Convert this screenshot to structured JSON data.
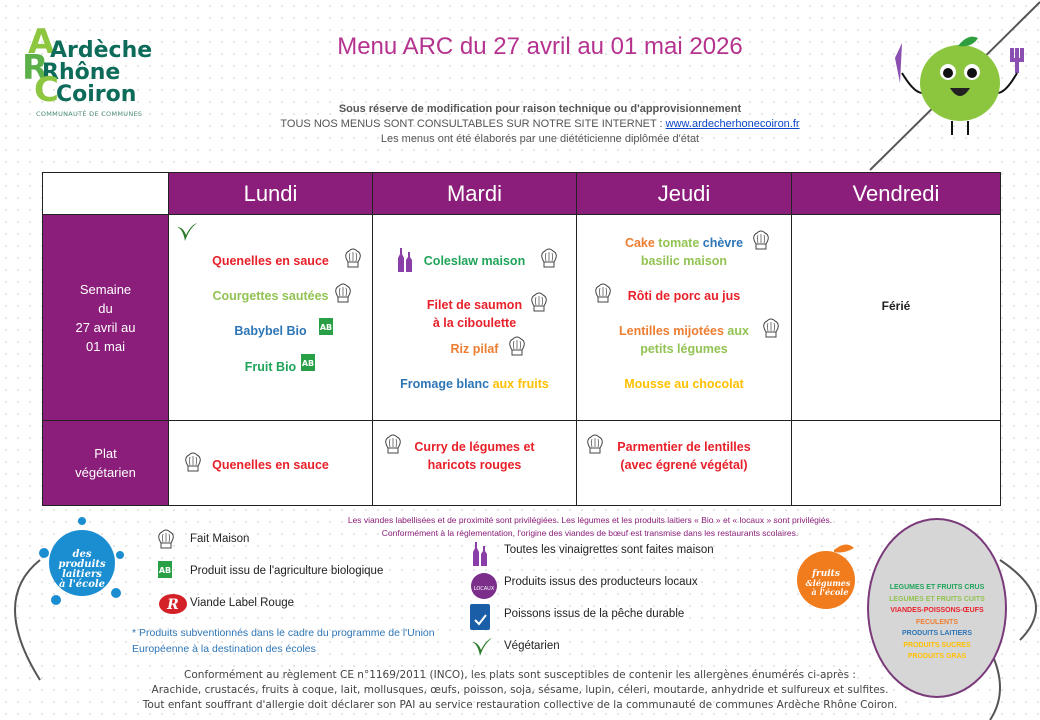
{
  "logo": {
    "line1": "Ardèche",
    "line2": "Rhône",
    "line3": "Coiron",
    "subtitle": "COMMUNAUTÉ DE COMMUNES"
  },
  "title": "Menu ARC du 27 avril au 01 mai 2026",
  "notes": {
    "line1": "Sous réserve de modification pour raison technique ou d'approvisionnement",
    "line2": "TOUS NOS MENUS SONT CONSULTABLES SUR NOTRE SITE INTERNET : ",
    "link": "www.ardecherhonecoiron.fr",
    "line3": "Les menus ont été élaborés par une diététicienne diplômée d'état"
  },
  "colors": {
    "header": "#8b1e7a",
    "red": "#e8202a",
    "lightgreen": "#92c353",
    "green": "#1fa45a",
    "blue": "#2e75b6",
    "orange": "#ed7d31",
    "yellow": "#ffc000",
    "title": "#b5338f"
  },
  "days": [
    "Lundi",
    "Mardi",
    "Jeudi",
    "Vendredi"
  ],
  "rows": [
    {
      "label": [
        "Semaine",
        "du",
        "27 avril au",
        "01 mai"
      ],
      "cells": [
        [
          {
            "segments": [
              {
                "t": "Quenelles en sauce",
                "c": "red"
              }
            ],
            "icons": [
              "chef-hat"
            ]
          },
          {
            "segments": [
              {
                "t": "Courgettes sautées",
                "c": "lightgreen"
              }
            ],
            "icons": [
              "chef-hat"
            ]
          },
          {
            "segments": [
              {
                "t": "Babybel Bio",
                "c": "blue"
              }
            ],
            "icons": [
              "organic-ab"
            ]
          },
          {
            "segments": [
              {
                "t": "Fruit Bio",
                "c": "green"
              }
            ],
            "icons": [
              "organic-ab"
            ]
          }
        ],
        [
          {
            "segments": [
              {
                "t": "Coleslaw maison",
                "c": "green"
              }
            ],
            "icons": [
              "vinaigrette-bottle",
              "chef-hat"
            ]
          },
          {
            "segments": [
              {
                "t": "Filet de saumon\nà la ciboulette",
                "c": "red"
              }
            ],
            "icons": [
              "chef-hat"
            ]
          },
          {
            "segments": [
              {
                "t": "Riz pilaf",
                "c": "orange"
              }
            ],
            "icons": [
              "chef-hat"
            ]
          },
          {
            "segments": [
              {
                "t": "Fromage blanc ",
                "c": "blue"
              },
              {
                "t": "aux fruits",
                "c": "yellow"
              }
            ],
            "icons": []
          }
        ],
        [
          {
            "segments": [
              {
                "t": "Cake ",
                "c": "orange"
              },
              {
                "t": "tomate ",
                "c": "lightgreen"
              },
              {
                "t": "chèvre\n",
                "c": "blue"
              },
              {
                "t": "basilic maison",
                "c": "lightgreen"
              }
            ],
            "icons": [
              "chef-hat"
            ]
          },
          {
            "segments": [
              {
                "t": "Rôti de porc au jus",
                "c": "red"
              }
            ],
            "icons": [
              "chef-hat"
            ]
          },
          {
            "segments": [
              {
                "t": "Lentilles mijotées ",
                "c": "orange"
              },
              {
                "t": "aux\npetits légumes",
                "c": "lightgreen"
              }
            ],
            "icons": [
              "chef-hat"
            ]
          },
          {
            "segments": [
              {
                "t": "Mousse au chocolat",
                "c": "yellow"
              }
            ],
            "icons": []
          }
        ],
        [
          {
            "segments": [
              {
                "t": "Férié",
                "c": "black"
              }
            ],
            "icons": []
          }
        ]
      ]
    },
    {
      "label": [
        "Plat",
        "végétarien"
      ],
      "cells": [
        [
          {
            "segments": [
              {
                "t": "Quenelles en sauce",
                "c": "red"
              }
            ],
            "icons": [
              "chef-hat"
            ]
          }
        ],
        [
          {
            "segments": [
              {
                "t": "Curry de légumes et\nharicots rouges",
                "c": "red"
              }
            ],
            "icons": [
              "chef-hat"
            ]
          }
        ],
        [
          {
            "segments": [
              {
                "t": "Parmentier de lentilles\n(avec égrené végétal)",
                "c": "red"
              }
            ],
            "icons": [
              "chef-hat"
            ]
          }
        ],
        []
      ]
    }
  ],
  "info": {
    "line1": "Les viandes labellisées et de proximité sont privilégiées. Les légumes et les produits laitiers « Bio » et « locaux » sont privilégiés.",
    "line2": "Conformément à la réglementation, l'origine des viandes de bœuf est transmise dans les restaurants scolaires."
  },
  "legend_left": [
    {
      "icon": "chef-hat",
      "label": "Fait Maison"
    },
    {
      "icon": "organic-ab",
      "label": "Produit issu de l'agriculture biologique"
    },
    {
      "icon": "label-rouge",
      "label": "Viande Label Rouge"
    }
  ],
  "legend_right": [
    {
      "icon": "vinaigrette-bottle",
      "label": "Toutes les vinaigrettes sont faites maison"
    },
    {
      "icon": "local-producers",
      "label": "Produits issus des producteurs locaux"
    },
    {
      "icon": "msc-fish",
      "label": "Poissons  issus de la pêche durable"
    },
    {
      "icon": "vegetarian",
      "label": "Végétarien"
    }
  ],
  "eu_note": "* Produits subventionnés dans le cadre du programme de l'Union Européenne à la destination des écoles",
  "dairy_logo": "des produits laitiers à l'école",
  "fruit_logo": "fruits & légumes à l'école",
  "food_groups": [
    {
      "t": "LEGUMES ET FRUITS CRUS",
      "c": "#1fa45a"
    },
    {
      "t": "LEGUMES ET FRUITS CUITS",
      "c": "#92c353"
    },
    {
      "t": "VIANDES-POISSONS-ŒUFS",
      "c": "#e8202a"
    },
    {
      "t": "FECULENTS",
      "c": "#ed7d31"
    },
    {
      "t": "PRODUITS LAITIERS",
      "c": "#2e75b6"
    },
    {
      "t": "PRODUITS SUCRES",
      "c": "#ffc000"
    },
    {
      "t": "PRODUITS GRAS",
      "c": "#ffc000"
    }
  ],
  "footer": [
    "Conformément au règlement CE n°1169/2011 (INCO), les plats sont susceptibles de contenir les allergènes énumérés ci-après :",
    "Arachide, crustacés, fruits à coque, lait, mollusques, œufs, poisson, soja, sésame, lupin, céleri, moutarde, anhydride et sulfureux et sulfites.",
    "Tout enfant souffrant d'allergie doit déclarer son PAI au service restauration collective de la communauté de communes Ardèche Rhône Coiron."
  ]
}
